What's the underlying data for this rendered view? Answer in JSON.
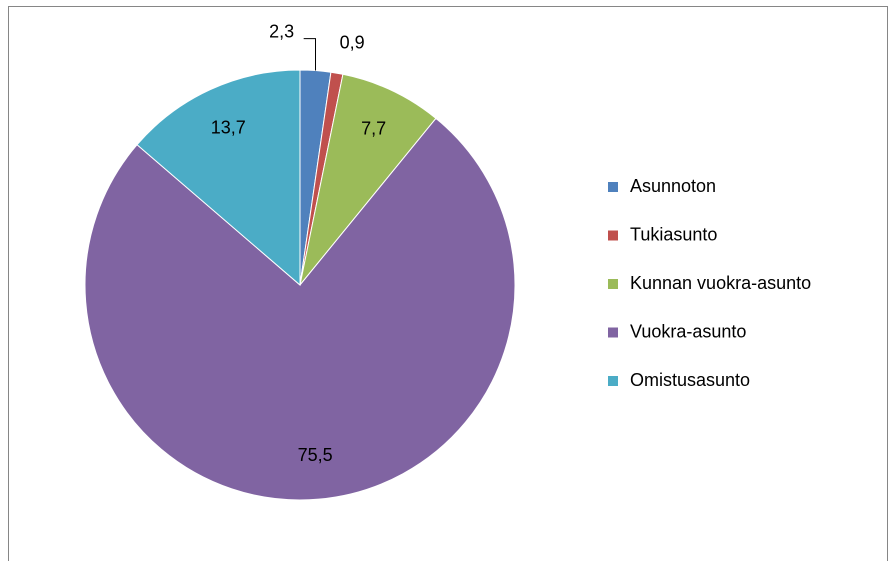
{
  "chart_data": {
    "type": "pie",
    "categories": [
      "Asunnoton",
      "Tukiasunto",
      "Kunnan vuokra-asunto",
      "Vuokra-asunto",
      "Omistusasunto"
    ],
    "values": [
      2.3,
      0.9,
      7.7,
      75.5,
      13.7
    ],
    "value_labels": [
      "2,3",
      "0,9",
      "7,7",
      "75,5",
      "13,7"
    ],
    "colors": [
      "#4F81BD",
      "#C0504D",
      "#9BBB59",
      "#8064A2",
      "#4BACC6"
    ],
    "legend": "right"
  }
}
